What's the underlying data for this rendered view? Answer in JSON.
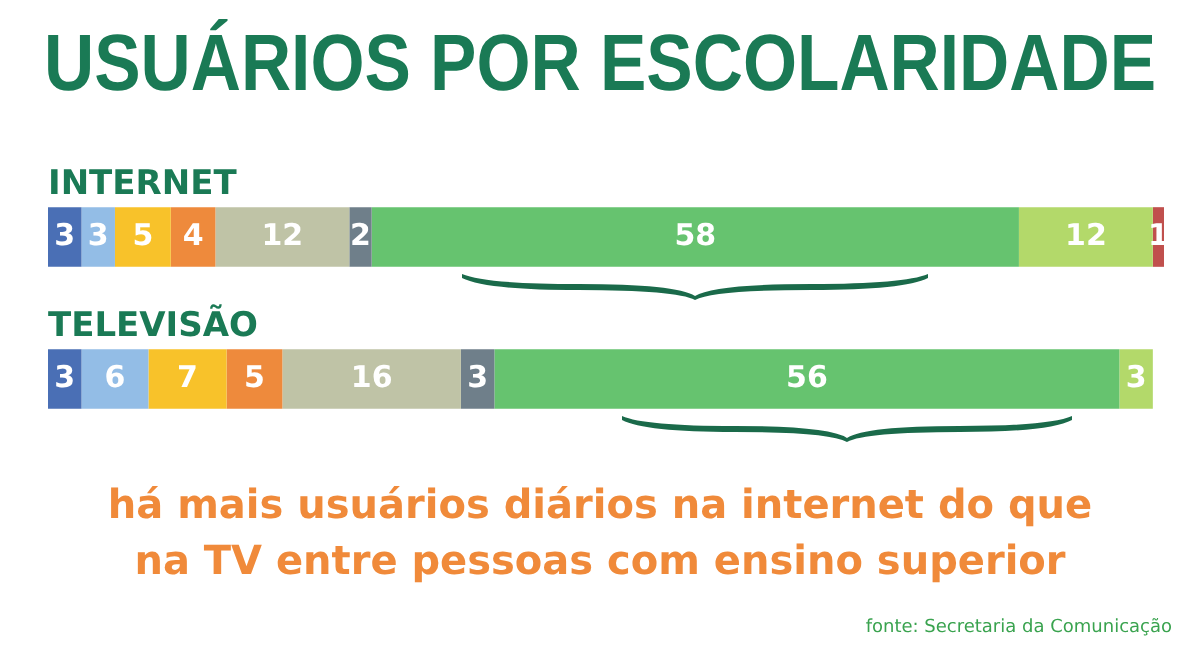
{
  "chart_data": {
    "type": "bar",
    "orientation": "horizontal",
    "stacked": true,
    "title": "USUÁRIOS POR ESCOLARIDADE",
    "categories": [
      "INTERNET",
      "TELEVISÃO"
    ],
    "series": [
      {
        "color": "#4a6fb5",
        "values": [
          3,
          3
        ]
      },
      {
        "color": "#93bde6",
        "values": [
          3,
          6
        ]
      },
      {
        "color": "#f8c22a",
        "values": [
          5,
          7
        ]
      },
      {
        "color": "#ee8a3c",
        "values": [
          4,
          5
        ]
      },
      {
        "color": "#bfc3a6",
        "values": [
          12,
          16
        ]
      },
      {
        "color": "#6f7f8a",
        "values": [
          2,
          3
        ]
      },
      {
        "color": "#66c36f",
        "values": [
          58,
          56
        ]
      },
      {
        "color": "#b3d96a",
        "values": [
          12,
          3
        ]
      },
      {
        "color": "#c0504d",
        "values": [
          1,
          null
        ]
      }
    ],
    "data_labels": true,
    "legend": false,
    "annotations": [
      "há mais usuários diários na internet do que na TV entre pessoas com ensino superior",
      "fonte: Secretaria da Comunicação"
    ]
  }
}
